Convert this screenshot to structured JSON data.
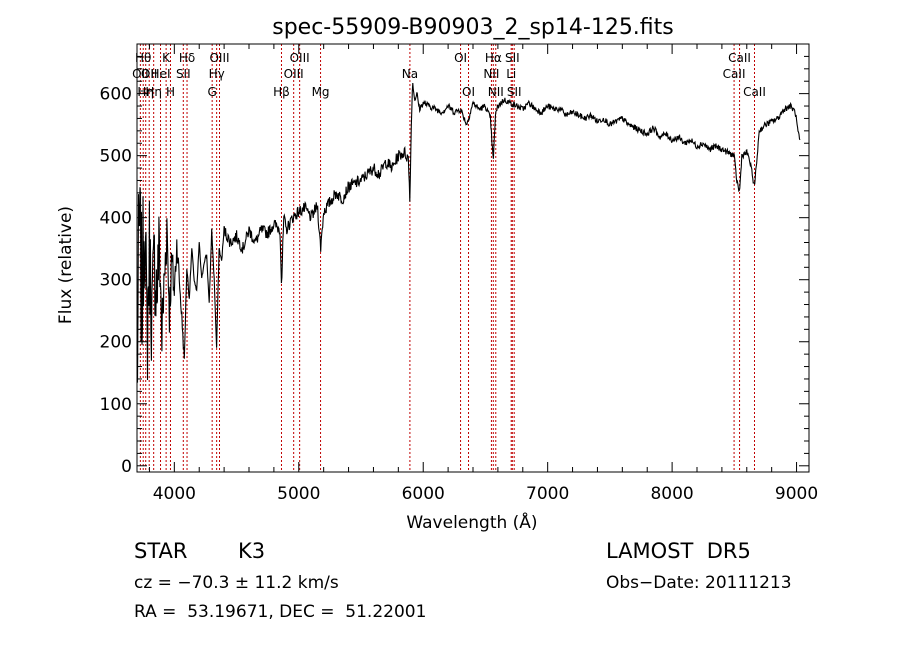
{
  "chart_data": {
    "type": "line",
    "title": "spec-55909-B90903_2_sp14-125.fits",
    "xlabel": "Wavelength (Å)",
    "ylabel": "Flux (relative)",
    "xlim": [
      3700,
      9100
    ],
    "ylim": [
      -10,
      680
    ],
    "xticks": [
      4000,
      5000,
      6000,
      7000,
      8000,
      9000
    ],
    "yticks": [
      0,
      100,
      200,
      300,
      400,
      500,
      600
    ],
    "grid": false,
    "series": [
      {
        "line_color": "#000000",
        "x": [
          3700,
          3720,
          3740,
          3760,
          3780,
          3800,
          3820,
          3840,
          3860,
          3880,
          3900,
          3920,
          3940,
          3960,
          3980,
          4000,
          4020,
          4040,
          4060,
          4080,
          4100,
          4120,
          4140,
          4160,
          4180,
          4200,
          4220,
          4240,
          4260,
          4280,
          4300,
          4320,
          4340,
          4360,
          4380,
          4400,
          4450,
          4500,
          4550,
          4600,
          4650,
          4700,
          4750,
          4800,
          4850,
          4861,
          4880,
          4900,
          4950,
          5000,
          5050,
          5100,
          5150,
          5175,
          5200,
          5250,
          5300,
          5350,
          5400,
          5450,
          5500,
          5550,
          5600,
          5650,
          5700,
          5750,
          5800,
          5850,
          5880,
          5893,
          5905,
          5915,
          5930,
          5950,
          5970,
          6000,
          6050,
          6100,
          6150,
          6200,
          6250,
          6300,
          6350,
          6400,
          6450,
          6500,
          6540,
          6563,
          6580,
          6600,
          6650,
          6700,
          6750,
          6800,
          6850,
          6900,
          6950,
          7000,
          7050,
          7100,
          7150,
          7200,
          7250,
          7300,
          7350,
          7400,
          7450,
          7500,
          7550,
          7600,
          7650,
          7700,
          7750,
          7800,
          7850,
          7900,
          7950,
          8000,
          8050,
          8100,
          8150,
          8200,
          8250,
          8300,
          8350,
          8400,
          8450,
          8498,
          8520,
          8542,
          8560,
          8600,
          8620,
          8662,
          8680,
          8700,
          8750,
          8800,
          8850,
          8900,
          8950,
          8990,
          9010,
          9030
        ],
        "y": [
          150,
          380,
          260,
          420,
          200,
          350,
          240,
          330,
          280,
          360,
          210,
          300,
          390,
          250,
          330,
          280,
          360,
          300,
          240,
          170,
          320,
          270,
          350,
          300,
          280,
          360,
          300,
          330,
          340,
          260,
          380,
          300,
          190,
          350,
          330,
          380,
          360,
          370,
          350,
          380,
          360,
          380,
          375,
          390,
          380,
          290,
          400,
          380,
          400,
          410,
          415,
          400,
          420,
          350,
          410,
          425,
          440,
          430,
          450,
          455,
          460,
          470,
          480,
          470,
          490,
          480,
          500,
          505,
          495,
          430,
          560,
          620,
          590,
          600,
          575,
          585,
          580,
          575,
          570,
          580,
          570,
          575,
          550,
          585,
          575,
          580,
          560,
          490,
          565,
          580,
          590,
          585,
          580,
          575,
          585,
          575,
          570,
          580,
          575,
          575,
          565,
          570,
          565,
          560,
          565,
          555,
          560,
          550,
          555,
          560,
          550,
          545,
          540,
          535,
          545,
          530,
          535,
          525,
          530,
          520,
          525,
          515,
          520,
          510,
          515,
          510,
          505,
          500,
          460,
          440,
          500,
          505,
          495,
          450,
          490,
          540,
          550,
          555,
          560,
          575,
          580,
          570,
          540,
          520
        ],
        "noise_amp": [
          220,
          180,
          160,
          150,
          150,
          140,
          130,
          120,
          110,
          100,
          90,
          80,
          70,
          60,
          50,
          40,
          30,
          20,
          15,
          10,
          8,
          6,
          5,
          5,
          5,
          5,
          5,
          5,
          5,
          5,
          5,
          5,
          5,
          5
        ]
      }
    ],
    "annotations": [
      {
        "x": 3727,
        "label": "OII",
        "row": 2
      },
      {
        "x": 3750,
        "label": "Hθ",
        "row": 1
      },
      {
        "x": 3770,
        "label": "Hη",
        "row": 3
      },
      {
        "x": 3798,
        "label": "OII",
        "row": 2
      },
      {
        "x": 3834,
        "label": "Hη",
        "row": 3
      },
      {
        "x": 3889,
        "label": "HeI",
        "row": 2
      },
      {
        "x": 3934,
        "label": "K",
        "row": 1
      },
      {
        "x": 3969,
        "label": "H",
        "row": 3
      },
      {
        "x": 4072,
        "label": "SII",
        "row": 2
      },
      {
        "x": 4102,
        "label": "Hδ",
        "row": 1
      },
      {
        "x": 4304,
        "label": "G",
        "row": 3
      },
      {
        "x": 4340,
        "label": "Hγ",
        "row": 2
      },
      {
        "x": 4363,
        "label": "OIII",
        "row": 1
      },
      {
        "x": 4861,
        "label": "Hβ",
        "row": 3
      },
      {
        "x": 4959,
        "label": "OIII",
        "row": 2
      },
      {
        "x": 5007,
        "label": "OIII",
        "row": 1
      },
      {
        "x": 5175,
        "label": "Mg",
        "row": 3
      },
      {
        "x": 5893,
        "label": "Na",
        "row": 2
      },
      {
        "x": 6300,
        "label": "OI",
        "row": 1
      },
      {
        "x": 6364,
        "label": "OI",
        "row": 3
      },
      {
        "x": 6548,
        "label": "NII",
        "row": 2
      },
      {
        "x": 6563,
        "label": "Hα",
        "row": 1
      },
      {
        "x": 6583,
        "label": "NII",
        "row": 3
      },
      {
        "x": 6707,
        "label": "Li",
        "row": 2
      },
      {
        "x": 6716,
        "label": "SII",
        "row": 1
      },
      {
        "x": 6731,
        "label": "SII",
        "row": 3
      },
      {
        "x": 8498,
        "label": "CaII",
        "row": 2
      },
      {
        "x": 8542,
        "label": "CaII",
        "row": 1
      },
      {
        "x": 8662,
        "label": "CaII",
        "row": 3
      }
    ],
    "line_marker_color": "#c00000"
  },
  "info": {
    "class": "STAR",
    "subclass": "K3",
    "survey": "LAMOST  DR5",
    "cz": "cz = −70.3 ± 11.2 km/s",
    "obs_date": "Obs−Date: 20111213",
    "radec": "RA =  53.19671, DEC =  51.22001"
  }
}
